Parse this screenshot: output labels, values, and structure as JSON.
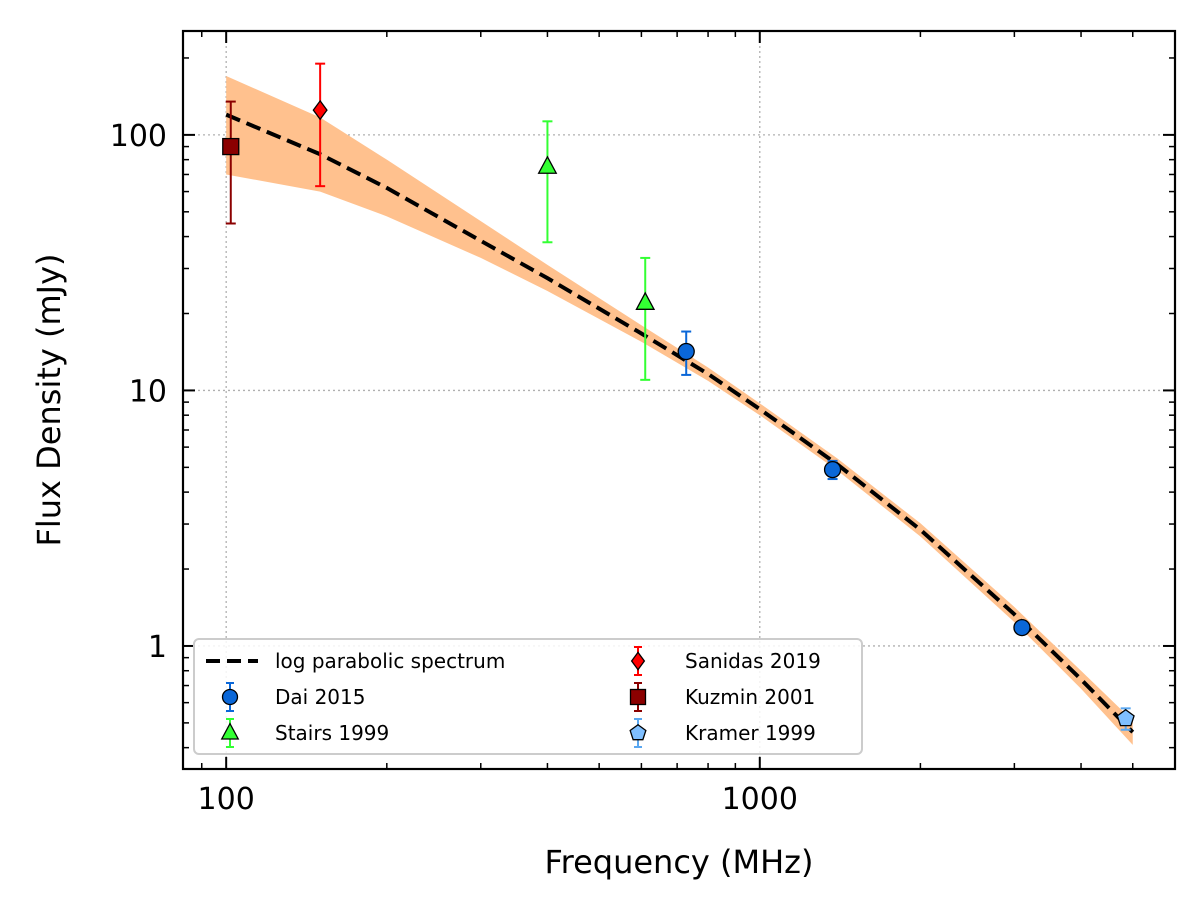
{
  "chart_data": {
    "type": "scatter",
    "xlabel": "Frequency (MHz)",
    "ylabel": "Flux Density (mJy)",
    "xscale": "log",
    "yscale": "log",
    "xlim": [
      83,
      6000
    ],
    "ylim": [
      0.33,
      255
    ],
    "grid": true,
    "legend_placement": "lower-left",
    "x_tick_labels": [
      {
        "value": 100,
        "label": "100"
      },
      {
        "value": 1000,
        "label": "1000"
      }
    ],
    "y_tick_labels": [
      {
        "value": 1,
        "label": "1"
      },
      {
        "value": 10,
        "label": "10"
      },
      {
        "value": 100,
        "label": "100"
      }
    ],
    "model": {
      "name": "log parabolic spectrum",
      "color": "#000000",
      "band_color": "#ffc18e",
      "x": [
        100,
        150,
        200,
        300,
        400,
        600,
        800,
        1000,
        1400,
        2000,
        3000,
        4000,
        5000
      ],
      "y": [
        120,
        84,
        62,
        38.5,
        27.5,
        16.7,
        11.6,
        8.45,
        5.12,
        2.85,
        1.33,
        0.74,
        0.46
      ],
      "y_lower": [
        70,
        60,
        48,
        33,
        24.5,
        15.5,
        10.9,
        8.0,
        4.85,
        2.68,
        1.24,
        0.68,
        0.41
      ],
      "y_upper": [
        170,
        117,
        80,
        46,
        31,
        18,
        12.3,
        8.9,
        5.4,
        3.02,
        1.42,
        0.8,
        0.51
      ]
    },
    "series": [
      {
        "name": "Dai 2015",
        "marker": "circle",
        "color": "#0a67d8",
        "points": [
          {
            "x": 728,
            "y": 14.2,
            "lo": 11.5,
            "hi": 17.0
          },
          {
            "x": 1369,
            "y": 4.9,
            "lo": 4.5,
            "hi": 5.3
          },
          {
            "x": 3100,
            "y": 1.18,
            "lo": 1.12,
            "hi": 1.24
          }
        ]
      },
      {
        "name": "Stairs 1999",
        "marker": "triangle",
        "color": "#33ff33",
        "points": [
          {
            "x": 400,
            "y": 75,
            "lo": 38,
            "hi": 113
          },
          {
            "x": 610,
            "y": 22,
            "lo": 11,
            "hi": 33
          }
        ]
      },
      {
        "name": "Sanidas 2019",
        "marker": "diamond",
        "color": "#ff0000",
        "points": [
          {
            "x": 150,
            "y": 125,
            "lo": 63,
            "hi": 190
          }
        ]
      },
      {
        "name": "Kuzmin 2001",
        "marker": "square",
        "color": "#8b0000",
        "points": [
          {
            "x": 102,
            "y": 90,
            "lo": 45,
            "hi": 135
          }
        ]
      },
      {
        "name": "Kramer 1999",
        "marker": "pentagon",
        "color": "#7fbfff",
        "points": [
          {
            "x": 4850,
            "y": 0.52,
            "lo": 0.47,
            "hi": 0.57
          }
        ]
      }
    ]
  }
}
